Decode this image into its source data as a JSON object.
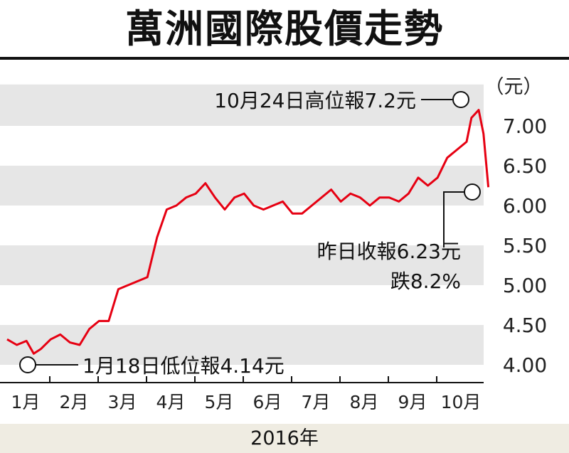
{
  "chart_data": {
    "type": "line",
    "title": "萬洲國際股價走勢",
    "unit_label": "（元）",
    "xlabel": "2016年",
    "x_tick_labels": [
      "1月",
      "2月",
      "3月",
      "4月",
      "5月",
      "6月",
      "7月",
      "8月",
      "9月",
      "10月"
    ],
    "y_tick_labels": [
      "4.00",
      "4.50",
      "5.00",
      "5.50",
      "6.00",
      "6.50",
      "7.00"
    ],
    "ylim": [
      3.95,
      7.45
    ],
    "grid": "horizontal bands",
    "series_color": "#e60012",
    "series": [
      {
        "x_months": [
          0.0,
          0.2,
          0.4,
          0.55,
          0.7,
          0.9,
          1.1,
          1.3,
          1.5,
          1.7,
          1.9,
          2.1,
          2.3,
          2.5,
          2.7,
          2.9,
          3.1,
          3.3,
          3.5,
          3.7,
          3.9,
          4.1,
          4.3,
          4.5,
          4.7,
          4.9,
          5.1,
          5.3,
          5.5,
          5.7,
          5.9,
          6.1,
          6.3,
          6.5,
          6.7,
          6.9,
          7.1,
          7.3,
          7.5,
          7.7,
          7.9,
          8.1,
          8.3,
          8.5,
          8.7,
          8.9,
          9.1,
          9.3,
          9.5,
          9.6,
          9.75,
          9.85,
          9.95
        ],
        "values": [
          4.32,
          4.25,
          4.3,
          4.14,
          4.2,
          4.32,
          4.38,
          4.28,
          4.25,
          4.45,
          4.55,
          4.55,
          4.95,
          5.0,
          5.05,
          5.1,
          5.6,
          5.95,
          6.0,
          6.1,
          6.15,
          6.28,
          6.1,
          5.95,
          6.1,
          6.15,
          6.0,
          5.95,
          6.0,
          6.05,
          5.9,
          5.9,
          6.0,
          6.1,
          6.2,
          6.05,
          6.15,
          6.1,
          6.0,
          6.1,
          6.1,
          6.05,
          6.15,
          6.35,
          6.25,
          6.35,
          6.6,
          6.7,
          6.8,
          7.1,
          7.2,
          6.9,
          6.23
        ]
      }
    ],
    "annotations": {
      "high": {
        "label": "10月24日高位報7.2元",
        "x_month": 9.75,
        "value": 7.2
      },
      "low": {
        "label": "1月18日低位報4.14元",
        "x_month": 0.55,
        "value": 4.14
      },
      "latest": {
        "line1": "昨日收報6.23元",
        "line2": "跌8.2%",
        "x_month": 9.95,
        "value": 6.23
      }
    }
  }
}
